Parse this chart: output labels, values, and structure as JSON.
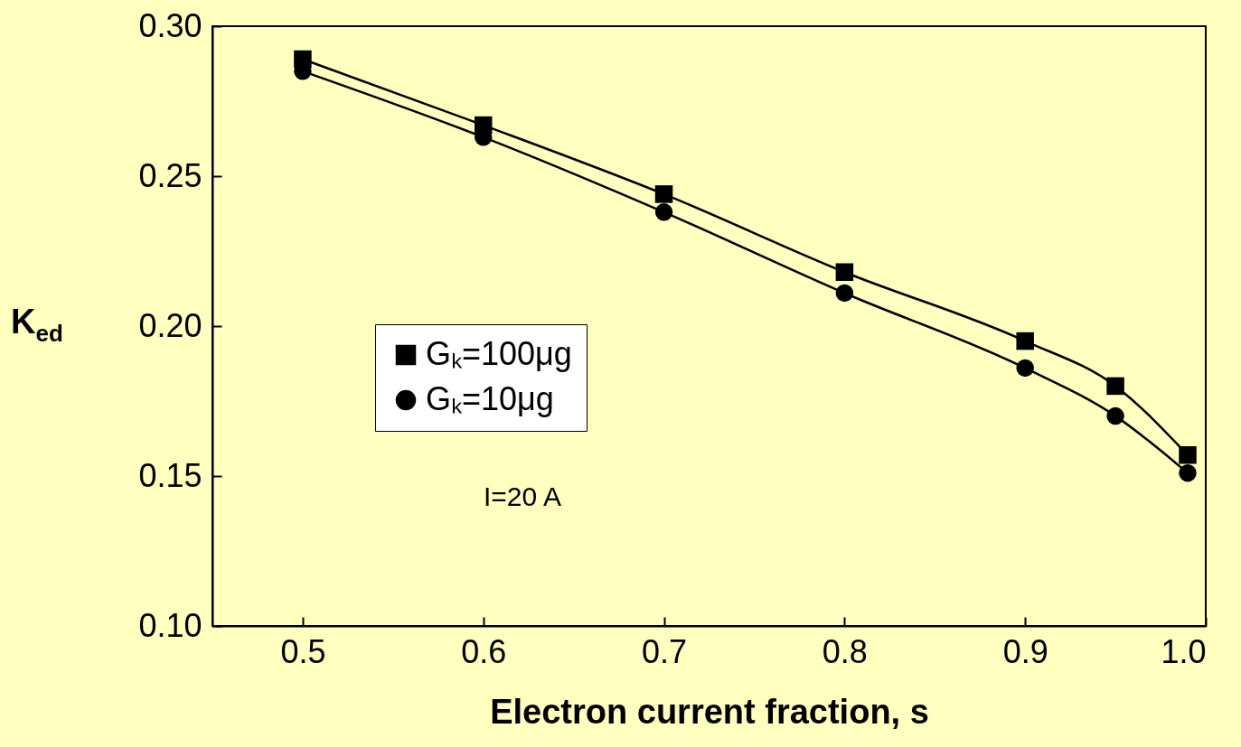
{
  "chart_data": {
    "type": "line",
    "xlabel": "Electron current fraction, s",
    "ylabel": "K$_{ed}$",
    "x": [
      0.5,
      0.6,
      0.7,
      0.8,
      0.9,
      0.95,
      0.99
    ],
    "series": [
      {
        "name": "Gₖ=100μg",
        "color": "#000000",
        "marker": "square",
        "values": [
          0.289,
          0.267,
          0.244,
          0.218,
          0.195,
          0.18,
          0.157
        ]
      },
      {
        "name": "Gₖ=10μg",
        "color": "#000000",
        "marker": "circle",
        "values": [
          0.285,
          0.263,
          0.238,
          0.211,
          0.186,
          0.17,
          0.151
        ]
      }
    ],
    "xlim": [
      0.45,
      1.0
    ],
    "xticks": [
      {
        "value": 0.5,
        "label": "0.5"
      },
      {
        "value": 0.6,
        "label": "0.6"
      },
      {
        "value": 0.7,
        "label": "0.7"
      },
      {
        "value": 0.8,
        "label": "0.8"
      },
      {
        "value": 0.9,
        "label": "0.9"
      },
      {
        "value": 1.0,
        "label": "1.0"
      }
    ],
    "ylim": [
      0.1,
      0.3
    ],
    "yticks": [
      {
        "value": 0.1,
        "label": "0.10"
      },
      {
        "value": 0.15,
        "label": "0.15"
      },
      {
        "value": 0.2,
        "label": "0.20"
      },
      {
        "value": 0.25,
        "label": "0.25"
      },
      {
        "value": 0.3,
        "label": "0.30"
      }
    ],
    "legend": "left",
    "grid": false,
    "annotations": [
      "I=20 A"
    ]
  }
}
